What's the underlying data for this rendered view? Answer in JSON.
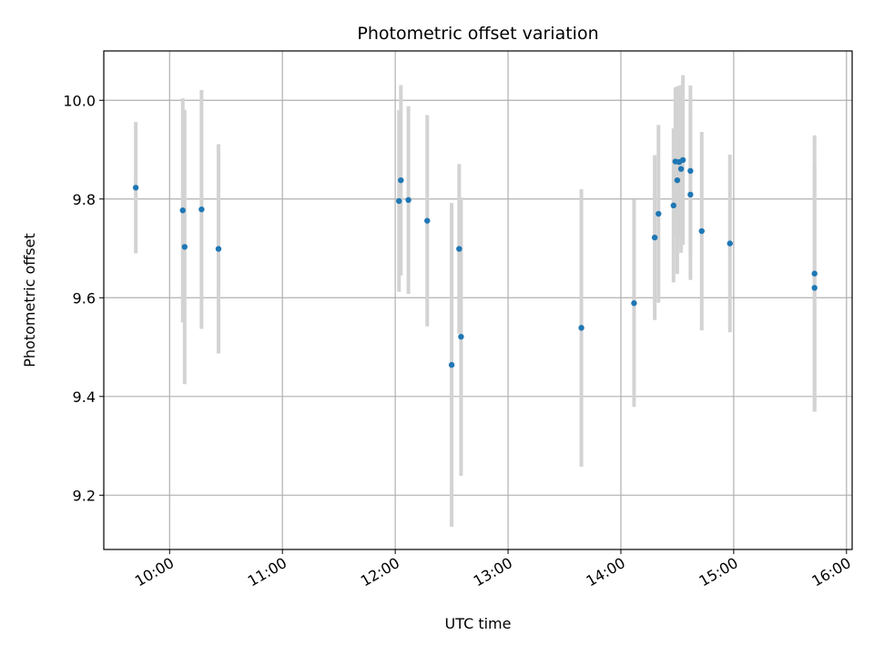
{
  "chart_data": {
    "type": "scatter",
    "title": "Photometric offset variation",
    "xlabel": "UTC time",
    "ylabel": "Photometric offset",
    "xlim": [
      "09:25",
      "16:03"
    ],
    "ylim": [
      9.09,
      10.1
    ],
    "x_ticks": [
      "10:00",
      "11:00",
      "12:00",
      "13:00",
      "14:00",
      "15:00",
      "16:00"
    ],
    "y_ticks": [
      "9.2",
      "9.4",
      "9.6",
      "9.8",
      "10.0"
    ],
    "grid": true,
    "colors": {
      "point": "#1f77b4",
      "errorbar": "#d3d3d3",
      "grid": "#b0b0b0"
    },
    "series": [
      {
        "points": [
          {
            "x": "09:42",
            "y": 9.823,
            "err": 0.133
          },
          {
            "x": "10:07",
            "y": 9.777,
            "err": 0.227
          },
          {
            "x": "10:08",
            "y": 9.703,
            "err": 0.278
          },
          {
            "x": "10:17",
            "y": 9.779,
            "err": 0.242
          },
          {
            "x": "10:26",
            "y": 9.699,
            "err": 0.212
          },
          {
            "x": "12:02",
            "y": 9.796,
            "err": 0.184
          },
          {
            "x": "12:03",
            "y": 9.838,
            "err": 0.193
          },
          {
            "x": "12:07",
            "y": 9.798,
            "err": 0.19
          },
          {
            "x": "12:17",
            "y": 9.756,
            "err": 0.214
          },
          {
            "x": "12:30",
            "y": 9.464,
            "err": 0.328
          },
          {
            "x": "12:34",
            "y": 9.699,
            "err": 0.172
          },
          {
            "x": "12:35",
            "y": 9.521,
            "err": 0.282
          },
          {
            "x": "13:39",
            "y": 9.539,
            "err": 0.281
          },
          {
            "x": "14:07",
            "y": 9.589,
            "err": 0.21
          },
          {
            "x": "14:18",
            "y": 9.722,
            "err": 0.167
          },
          {
            "x": "14:20",
            "y": 9.77,
            "err": 0.18
          },
          {
            "x": "14:28",
            "y": 9.787,
            "err": 0.156
          },
          {
            "x": "14:29",
            "y": 9.876,
            "err": 0.15
          },
          {
            "x": "14:30",
            "y": 9.838,
            "err": 0.19
          },
          {
            "x": "14:31",
            "y": 9.875,
            "err": 0.154
          },
          {
            "x": "14:32",
            "y": 9.861,
            "err": 0.17
          },
          {
            "x": "14:33",
            "y": 9.879,
            "err": 0.172
          },
          {
            "x": "14:37",
            "y": 9.857,
            "err": 0.173
          },
          {
            "x": "14:37",
            "y": 9.809,
            "err": 0.173
          },
          {
            "x": "14:43",
            "y": 9.735,
            "err": 0.201
          },
          {
            "x": "14:58",
            "y": 9.71,
            "err": 0.18
          },
          {
            "x": "15:43",
            "y": 9.649,
            "err": 0.28
          },
          {
            "x": "15:43",
            "y": 9.62,
            "err": 0.25
          }
        ]
      }
    ]
  }
}
